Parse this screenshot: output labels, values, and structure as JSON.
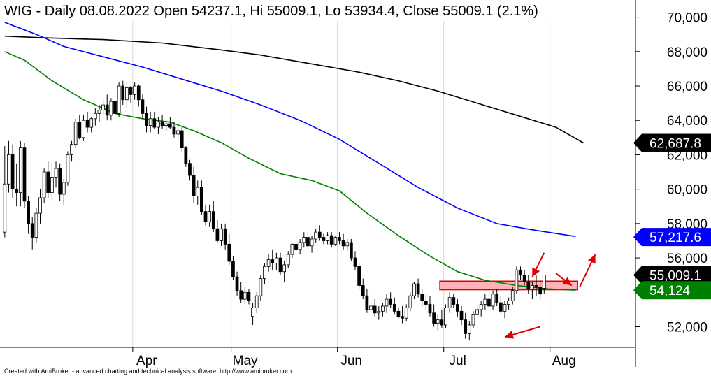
{
  "chart_data": {
    "type": "candlestick",
    "title": "WIG - Daily 08.08.2022 Open 54237.1, Hi 55009.1, Lo 53934.4, Close 55009.1 (2.1%)",
    "credit": "Created with AmiBroker - advanced charting and technical analysis software. http://www.amibroker.com",
    "y_ticks": [
      "52,000",
      "54,000",
      "56,000",
      "58,000",
      "60,000",
      "62,000",
      "64,000",
      "66,000",
      "68,000",
      "70,000"
    ],
    "y_tick_values": [
      52000,
      54000,
      56000,
      58000,
      60000,
      62000,
      64000,
      66000,
      68000,
      70000
    ],
    "ylim": [
      50800,
      71000
    ],
    "months": [
      {
        "label": "Apr",
        "index": 33
      },
      {
        "label": "May",
        "index": 58
      },
      {
        "label": "Jun",
        "index": 85
      },
      {
        "label": "Jul",
        "index": 112
      },
      {
        "label": "Aug",
        "index": 139
      }
    ],
    "n_slots": 160,
    "candles": [
      [
        57500,
        62500,
        57200,
        60300
      ],
      [
        60300,
        62800,
        59800,
        62000
      ],
      [
        62000,
        62600,
        59500,
        60000
      ],
      [
        60000,
        61500,
        59000,
        59800
      ],
      [
        59800,
        62800,
        59000,
        62400
      ],
      [
        62400,
        62700,
        58900,
        59300
      ],
      [
        59300,
        59600,
        57400,
        58000
      ],
      [
        58000,
        58400,
        56500,
        57200
      ],
      [
        57200,
        58900,
        56900,
        58600
      ],
      [
        58600,
        60000,
        58000,
        59500
      ],
      [
        59500,
        61200,
        59200,
        61000
      ],
      [
        61000,
        61600,
        59500,
        59800
      ],
      [
        59800,
        61500,
        59300,
        60700
      ],
      [
        60700,
        61600,
        60100,
        61200
      ],
      [
        61200,
        61500,
        59300,
        59700
      ],
      [
        59700,
        60600,
        59100,
        60400
      ],
      [
        60400,
        62200,
        60200,
        62000
      ],
      [
        62000,
        62800,
        61600,
        62600
      ],
      [
        62600,
        64100,
        62400,
        63900
      ],
      [
        63900,
        64300,
        62900,
        63000
      ],
      [
        63000,
        64300,
        62800,
        64000
      ],
      [
        64000,
        64500,
        63300,
        63600
      ],
      [
        63600,
        64200,
        63300,
        64100
      ],
      [
        64100,
        64700,
        63700,
        64400
      ],
      [
        64400,
        64900,
        63900,
        64600
      ],
      [
        64600,
        65200,
        64300,
        64900
      ],
      [
        64900,
        65500,
        64000,
        64300
      ],
      [
        64300,
        65300,
        64000,
        65100
      ],
      [
        65100,
        65800,
        64200,
        64400
      ],
      [
        64400,
        66200,
        64200,
        66000
      ],
      [
        66000,
        66300,
        64900,
        65200
      ],
      [
        65200,
        66200,
        64700,
        65900
      ],
      [
        65900,
        66000,
        65000,
        65500
      ],
      [
        65500,
        66200,
        65200,
        66000
      ],
      [
        66000,
        66100,
        64800,
        65200
      ],
      [
        65200,
        65500,
        64100,
        64400
      ],
      [
        64400,
        64800,
        63300,
        63700
      ],
      [
        63700,
        64500,
        63300,
        64100
      ],
      [
        64100,
        64500,
        63500,
        63600
      ],
      [
        63600,
        64200,
        63200,
        63900
      ],
      [
        63900,
        64300,
        63500,
        63700
      ],
      [
        63700,
        64000,
        63400,
        63800
      ],
      [
        63800,
        64200,
        63500,
        63600
      ],
      [
        63600,
        63900,
        63000,
        63200
      ],
      [
        63200,
        63700,
        62900,
        63400
      ],
      [
        63400,
        63600,
        62200,
        62400
      ],
      [
        62400,
        62500,
        61300,
        61500
      ],
      [
        61500,
        61700,
        60500,
        60800
      ],
      [
        60800,
        61300,
        59200,
        59600
      ],
      [
        59600,
        60500,
        59100,
        60100
      ],
      [
        60100,
        60500,
        58500,
        58700
      ],
      [
        58700,
        59100,
        57900,
        58100
      ],
      [
        58100,
        59100,
        57800,
        58700
      ],
      [
        58700,
        59300,
        57500,
        57700
      ],
      [
        57700,
        58200,
        56900,
        57000
      ],
      [
        57000,
        58000,
        56700,
        57700
      ],
      [
        57700,
        58000,
        56500,
        56800
      ],
      [
        56800,
        57400,
        55600,
        55800
      ],
      [
        55800,
        56100,
        54700,
        54900
      ],
      [
        54900,
        55200,
        53800,
        54100
      ],
      [
        54100,
        54600,
        53400,
        53600
      ],
      [
        53600,
        54300,
        53300,
        54000
      ],
      [
        54000,
        54200,
        53300,
        53500
      ],
      [
        52600,
        53400,
        52100,
        53100
      ],
      [
        53100,
        54000,
        52800,
        53800
      ],
      [
        53800,
        55000,
        53500,
        54800
      ],
      [
        54800,
        55700,
        54500,
        55500
      ],
      [
        55500,
        56200,
        55200,
        55900
      ],
      [
        55900,
        56500,
        55300,
        55700
      ],
      [
        55700,
        56300,
        55300,
        56000
      ],
      [
        56000,
        56300,
        55000,
        55200
      ],
      [
        55200,
        55800,
        54600,
        55600
      ],
      [
        55600,
        56400,
        55400,
        56200
      ],
      [
        56200,
        56900,
        56000,
        56800
      ],
      [
        56800,
        57300,
        56300,
        56500
      ],
      [
        56500,
        57100,
        56200,
        56900
      ],
      [
        56900,
        57500,
        56600,
        57200
      ],
      [
        57200,
        57500,
        56500,
        56700
      ],
      [
        56700,
        57300,
        56300,
        57100
      ],
      [
        57100,
        57700,
        56900,
        57500
      ],
      [
        57500,
        57900,
        57000,
        57200
      ],
      [
        57200,
        57400,
        56800,
        57000
      ],
      [
        57000,
        57500,
        56800,
        57300
      ],
      [
        57300,
        57500,
        56600,
        56800
      ],
      [
        56800,
        57300,
        56700,
        57200
      ],
      [
        57200,
        57500,
        56800,
        57000
      ],
      [
        57000,
        57400,
        56500,
        56700
      ],
      [
        56700,
        57100,
        56400,
        56900
      ],
      [
        56900,
        57100,
        55800,
        56000
      ],
      [
        56000,
        56400,
        55300,
        55500
      ],
      [
        55500,
        55700,
        54200,
        54400
      ],
      [
        54400,
        54800,
        53600,
        53800
      ],
      [
        53800,
        54200,
        52800,
        53000
      ],
      [
        53000,
        53500,
        52600,
        53200
      ],
      [
        53200,
        53600,
        52600,
        52800
      ],
      [
        52800,
        53200,
        52400,
        52900
      ],
      [
        52900,
        53400,
        52600,
        53200
      ],
      [
        53200,
        53900,
        52800,
        53600
      ],
      [
        53600,
        54000,
        53100,
        53300
      ],
      [
        53300,
        53700,
        52700,
        52900
      ],
      [
        52900,
        53100,
        52500,
        52600
      ],
      [
        52600,
        53200,
        52200,
        52500
      ],
      [
        52500,
        53300,
        52300,
        53100
      ],
      [
        53100,
        54000,
        52900,
        53800
      ],
      [
        53800,
        54600,
        53600,
        54500
      ],
      [
        54500,
        54800,
        53700,
        53900
      ],
      [
        53900,
        54200,
        53200,
        53500
      ],
      [
        53500,
        53900,
        53000,
        53300
      ],
      [
        53300,
        53800,
        52600,
        52800
      ],
      [
        52800,
        53300,
        52000,
        52200
      ],
      [
        52200,
        52700,
        51800,
        52400
      ],
      [
        52400,
        53000,
        51900,
        52100
      ],
      [
        52100,
        53300,
        51900,
        53100
      ],
      [
        53100,
        54000,
        52800,
        53700
      ],
      [
        53700,
        53900,
        53100,
        53300
      ],
      [
        53300,
        53600,
        52600,
        52900
      ],
      [
        52900,
        53200,
        52100,
        52400
      ],
      [
        52400,
        52800,
        51300,
        51600
      ],
      [
        51600,
        52300,
        51200,
        52100
      ],
      [
        52100,
        52900,
        51900,
        52700
      ],
      [
        52700,
        53300,
        52400,
        53000
      ],
      [
        53000,
        53500,
        52600,
        53300
      ],
      [
        53300,
        53900,
        53000,
        53600
      ],
      [
        53600,
        53800,
        53000,
        53200
      ],
      [
        53200,
        54100,
        53000,
        53900
      ],
      [
        53900,
        54200,
        53200,
        53400
      ],
      [
        53400,
        53800,
        52700,
        52900
      ],
      [
        52900,
        53500,
        52500,
        53300
      ],
      [
        53300,
        53700,
        53000,
        53500
      ],
      [
        53500,
        54300,
        53300,
        54100
      ],
      [
        54100,
        55500,
        53900,
        55300
      ],
      [
        55300,
        55500,
        54700,
        55000
      ],
      [
        55000,
        55300,
        54400,
        54600
      ],
      [
        54600,
        55000,
        53900,
        54200
      ],
      [
        54200,
        54600,
        53600,
        54400
      ],
      [
        54400,
        55000,
        53800,
        54300
      ],
      [
        54300,
        54700,
        53600,
        53900
      ],
      [
        54237.1,
        55009.1,
        53934.4,
        55009.1
      ]
    ],
    "series": [
      {
        "name": "MA200",
        "color": "#000000",
        "last": 62687.8,
        "points": [
          [
            0,
            68900
          ],
          [
            10,
            68800
          ],
          [
            25,
            68700
          ],
          [
            40,
            68500
          ],
          [
            55,
            68100
          ],
          [
            65,
            67800
          ],
          [
            75,
            67400
          ],
          [
            90,
            66800
          ],
          [
            100,
            66300
          ],
          [
            110,
            65700
          ],
          [
            120,
            65000
          ],
          [
            130,
            64300
          ],
          [
            140,
            63600
          ],
          [
            147,
            62687.8
          ]
        ]
      },
      {
        "name": "MA100",
        "color": "#0000ff",
        "last": 57217.6,
        "points": [
          [
            0,
            69700
          ],
          [
            8,
            69000
          ],
          [
            15,
            68300
          ],
          [
            25,
            67700
          ],
          [
            35,
            67100
          ],
          [
            45,
            66400
          ],
          [
            55,
            65700
          ],
          [
            65,
            64900
          ],
          [
            75,
            64000
          ],
          [
            85,
            62900
          ],
          [
            95,
            61500
          ],
          [
            105,
            60100
          ],
          [
            115,
            58900
          ],
          [
            125,
            58000
          ],
          [
            135,
            57600
          ],
          [
            145,
            57250
          ]
        ]
      },
      {
        "name": "MA50",
        "color": "#008000",
        "last": 54124,
        "points": [
          [
            0,
            68000
          ],
          [
            5,
            67500
          ],
          [
            12,
            66300
          ],
          [
            20,
            65200
          ],
          [
            28,
            64400
          ],
          [
            35,
            64100
          ],
          [
            42,
            63900
          ],
          [
            48,
            63400
          ],
          [
            55,
            62700
          ],
          [
            62,
            61800
          ],
          [
            70,
            60900
          ],
          [
            78,
            60500
          ],
          [
            85,
            59900
          ],
          [
            92,
            58600
          ],
          [
            100,
            57300
          ],
          [
            108,
            56100
          ],
          [
            115,
            55200
          ],
          [
            122,
            54700
          ],
          [
            130,
            54400
          ],
          [
            138,
            54200
          ],
          [
            145,
            54124
          ]
        ]
      }
    ],
    "value_tags": [
      {
        "label": "62,687.8",
        "value": 62687.8,
        "bg": "#000000",
        "fg": "#ffffff"
      },
      {
        "label": "57,217.6",
        "value": 57217.6,
        "bg": "#0000ff",
        "fg": "#ffffff"
      },
      {
        "label": "55,009.1",
        "value": 55009.1,
        "bg": "#000000",
        "fg": "#ffffff"
      },
      {
        "label": "54,124",
        "value": 54124,
        "bg": "#008000",
        "fg": "#ffffff"
      }
    ],
    "resistance_zone": {
      "from_index": 111,
      "to_index": 145,
      "top": 54650,
      "bottom": 54150,
      "fill": "#ffb3b8",
      "stroke": "#e00000"
    },
    "arrows": [
      {
        "from": [
          136,
          52000
        ],
        "to": [
          127,
          51400
        ],
        "color": "#e00000"
      },
      {
        "from": [
          137,
          56300
        ],
        "to": [
          134,
          54900
        ],
        "color": "#e00000"
      },
      {
        "from": [
          140,
          55100
        ],
        "to": [
          144,
          54400
        ],
        "color": "#e00000"
      },
      {
        "from": [
          146,
          54300
        ],
        "to": [
          150,
          56200
        ],
        "color": "#e00000"
      }
    ]
  }
}
